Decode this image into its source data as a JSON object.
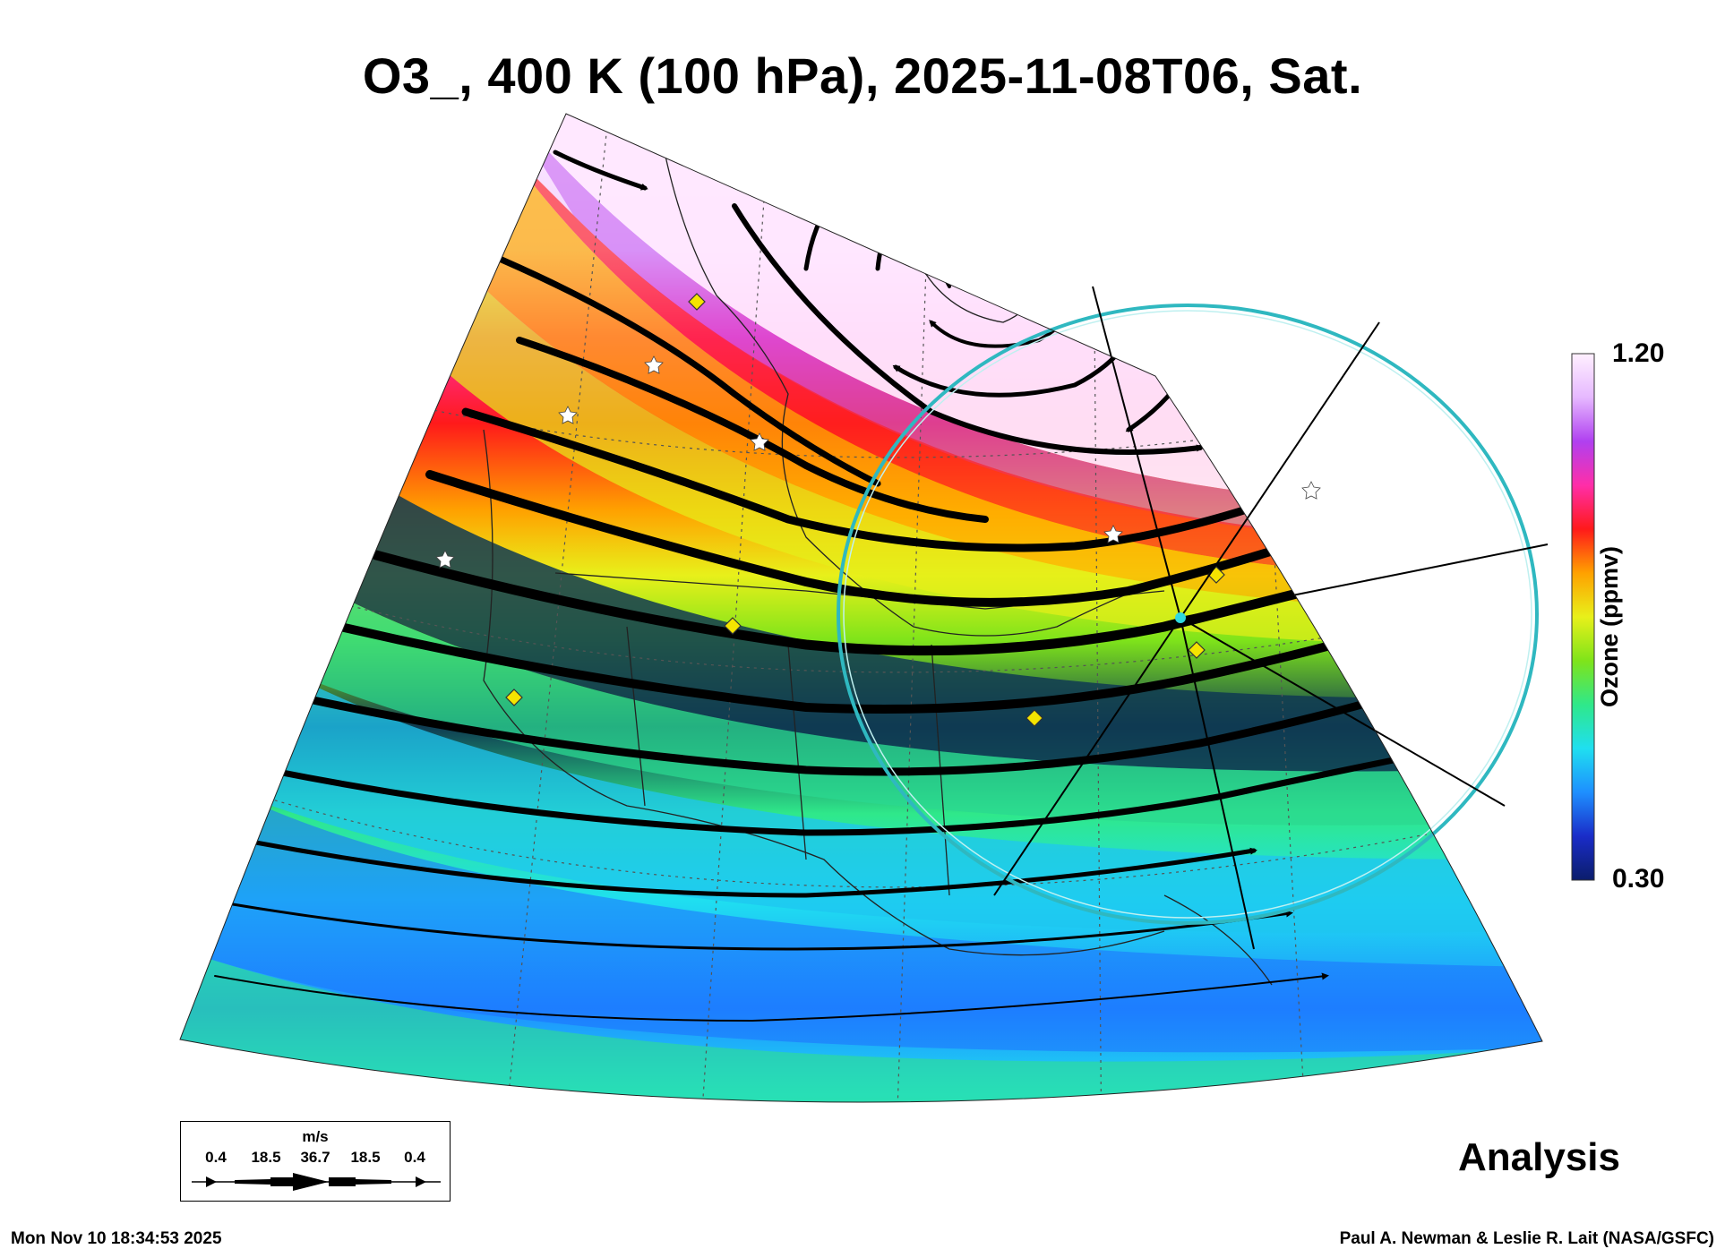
{
  "title": "O3_, 400 K (100 hPa), 2025-11-08T06, Sat.",
  "colorbar": {
    "max_label": "1.20",
    "min_label": "0.30",
    "title": "Ozone (ppmv)",
    "stops": [
      "#0b1d6b",
      "#1a2cc8",
      "#1e8fff",
      "#1fdff0",
      "#2fe88a",
      "#7fe41a",
      "#e8f01a",
      "#ffa100",
      "#ff1a1a",
      "#ff2ea8",
      "#b040f0",
      "#e6b8ff",
      "#fff0ff"
    ]
  },
  "wind_legend": {
    "unit": "m/s",
    "ticks": [
      "0.4",
      "18.5",
      "36.7",
      "18.5",
      "0.4"
    ]
  },
  "panel_label": "Analysis",
  "timestamp": "Mon Nov 10 18:34:53 2025",
  "credit": "Paul A. Newman & Leslie R. Lait (NASA/GSFC)",
  "map": {
    "projection": "conic sector",
    "features": [
      "ozone-field",
      "streamlines",
      "coastlines",
      "graticule",
      "observation-stars",
      "observation-diamonds",
      "cyan-range-circle"
    ],
    "accent_colors": {
      "range_circle": "#2fb8c0",
      "diamond": "#f5e400",
      "star": "#ffffff"
    }
  }
}
